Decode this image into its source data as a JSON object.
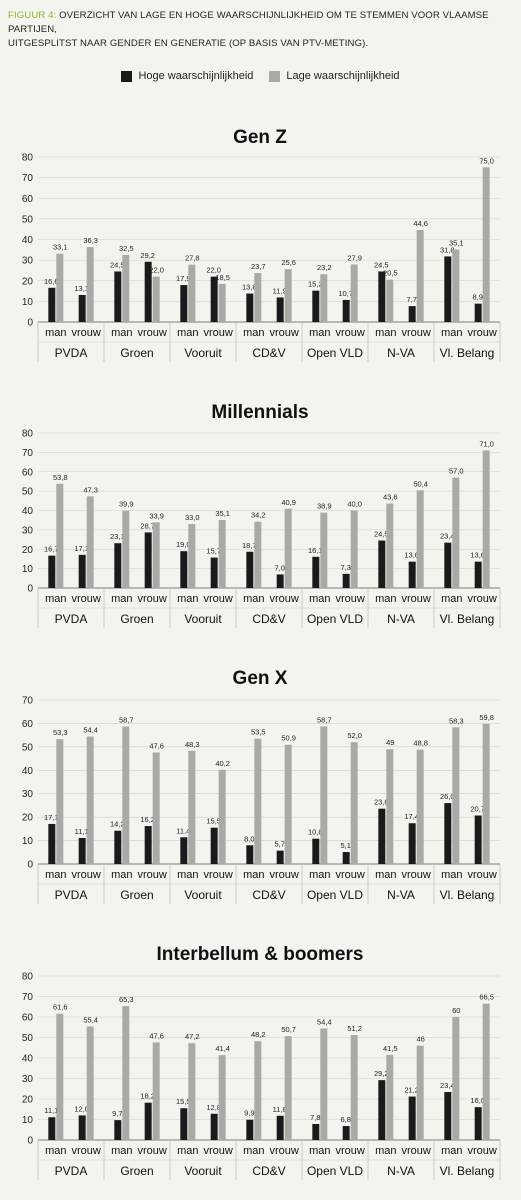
{
  "caption": {
    "prefix": "FIGUUR 4:",
    "line1": " OVERZICHT VAN LAGE EN HOGE WAARSCHIJNLIJKHEID OM TE STEMMEN VOOR VLAAMSE PARTIJEN,",
    "line2": "UITGESPLITST NAAR GENDER EN GENERATIE (OP BASIS VAN PTV-METING)."
  },
  "legend": [
    {
      "name": "Hoge waarschijnlijkheid",
      "color": "#1a1a1a"
    },
    {
      "name": "Lage waarschijnlijkheid",
      "color": "#a9a9a6"
    }
  ],
  "colors": {
    "high": "#1a1a1a",
    "low": "#a9a9a6",
    "caption_prefix": "#8ab531"
  },
  "chart_data": [
    {
      "type": "bar",
      "title": "Gen Z",
      "parties": [
        "PVDA",
        "Groen",
        "Vooruit",
        "CD&V",
        "Open VLD",
        "N-VA",
        "Vl. Belang"
      ],
      "subcategories": [
        "man",
        "vrouw"
      ],
      "ylim": [
        0,
        80
      ],
      "yticks": [
        "0",
        "10",
        "20",
        "30",
        "40",
        "50",
        "60",
        "70",
        "80"
      ],
      "series": [
        {
          "name": "Hoge waarschijnlijkheid",
          "values": [
            16.6,
            13.1,
            24.5,
            29.2,
            17.9,
            22.0,
            13.8,
            11.9,
            15.2,
            10.7,
            24.5,
            7.7,
            31.8,
            8.9
          ],
          "labels": [
            "16,6",
            "13,1",
            "24,5",
            "29,2",
            "17,9",
            "22,0",
            "13,8",
            "11,9",
            "15,2",
            "10,7",
            "24,5",
            "7,7",
            "31,8",
            "8,9"
          ]
        },
        {
          "name": "Lage waarschijnlijkheid",
          "values": [
            33.1,
            36.3,
            32.5,
            22.0,
            27.8,
            18.5,
            23.7,
            25.6,
            23.2,
            27.9,
            20.5,
            44.6,
            35.1,
            75.0
          ],
          "labels": [
            "33,1",
            "36,3",
            "32,5",
            "22,0",
            "27,8",
            "18,5",
            "23,7",
            "25,6",
            "23,2",
            "27,9",
            "20,5",
            "44,6",
            "35,1",
            "75,0"
          ]
        }
      ]
    },
    {
      "type": "bar",
      "title": "Millennials",
      "parties": [
        "PVDA",
        "Groen",
        "Vooruit",
        "CD&V",
        "Open VLD",
        "N-VA",
        "Vl. Belang"
      ],
      "subcategories": [
        "man",
        "vrouw"
      ],
      "ylim": [
        0,
        80
      ],
      "yticks": [
        "0",
        "10",
        "20",
        "30",
        "40",
        "50",
        "60",
        "70",
        "80"
      ],
      "series": [
        {
          "name": "Hoge waarschijnlijkheid",
          "values": [
            16.7,
            17.1,
            23.1,
            28.7,
            19.0,
            15.7,
            18.7,
            7.0,
            16.1,
            7.3,
            24.5,
            13.6,
            23.4,
            13.6
          ],
          "labels": [
            "16,7",
            "17,1",
            "23,1",
            "28,7",
            "19,0",
            "15,7",
            "18,7",
            "7,0",
            "16,1",
            "7,3",
            "24,5",
            "13,6",
            "23,4",
            "13,6"
          ]
        },
        {
          "name": "Lage waarschijnlijkheid",
          "values": [
            53.8,
            47.3,
            39.9,
            33.9,
            33.0,
            35.1,
            34.2,
            40.9,
            38.9,
            40.0,
            43.6,
            50.4,
            57.0,
            71.0
          ],
          "labels": [
            "53,8",
            "47,3",
            "39,9",
            "33,9",
            "33,0",
            "35,1",
            "34,2",
            "40,9",
            "38,9",
            "40,0",
            "43,6",
            "50,4",
            "57,0",
            "71,0"
          ]
        }
      ]
    },
    {
      "type": "bar",
      "title": "Gen X",
      "parties": [
        "PVDA",
        "Groen",
        "Vooruit",
        "CD&V",
        "Open VLD",
        "N-VA",
        "Vl. Belang"
      ],
      "subcategories": [
        "man",
        "vrouw"
      ],
      "ylim": [
        0,
        70
      ],
      "yticks": [
        "0",
        "10",
        "20",
        "30",
        "40",
        "50",
        "60",
        "70"
      ],
      "series": [
        {
          "name": "Hoge waarschijnlijkheid",
          "values": [
            17.1,
            11.1,
            14.2,
            16.2,
            11.4,
            15.5,
            8.0,
            5.7,
            10.8,
            5.1,
            23.6,
            17.4,
            26.0,
            20.7
          ],
          "labels": [
            "17,1",
            "11,1",
            "14,2",
            "16,2",
            "11,4",
            "15,5",
            "8,0",
            "5,7",
            "10,8",
            "5,1",
            "23,6",
            "17,4",
            "26,0",
            "20,7"
          ]
        },
        {
          "name": "Lage waarschijnlijkheid",
          "values": [
            53.3,
            54.4,
            58.7,
            47.6,
            48.3,
            40.2,
            53.5,
            50.9,
            58.7,
            52.0,
            49,
            48.8,
            58.3,
            59.8
          ],
          "labels": [
            "53,3",
            "54,4",
            "58,7",
            "47,6",
            "48,3",
            "40,2",
            "53,5",
            "50,9",
            "58,7",
            "52,0",
            "49",
            "48,8",
            "58,3",
            "59,8"
          ]
        }
      ]
    },
    {
      "type": "bar",
      "title": "Interbellum & boomers",
      "parties": [
        "PVDA",
        "Groen",
        "Vooruit",
        "CD&V",
        "Open VLD",
        "N-VA",
        "Vl. Belang"
      ],
      "subcategories": [
        "man",
        "vrouw"
      ],
      "ylim": [
        0,
        80
      ],
      "yticks": [
        "0",
        "10",
        "20",
        "30",
        "40",
        "50",
        "60",
        "70",
        "80"
      ],
      "series": [
        {
          "name": "Hoge waarschijnlijkheid",
          "values": [
            11.1,
            12.0,
            9.7,
            18.2,
            15.5,
            12.8,
            9.9,
            11.8,
            7.8,
            6.8,
            29.2,
            21.2,
            23.4,
            16.0
          ],
          "labels": [
            "11,1",
            "12,0",
            "9,7",
            "18,2",
            "15,5",
            "12,8",
            "9,9",
            "11,8",
            "7,8",
            "6,8",
            "29,2",
            "21,2",
            "23,4",
            "16,0"
          ]
        },
        {
          "name": "Lage waarschijnlijkheid",
          "values": [
            61.6,
            55.4,
            65.3,
            47.6,
            47.2,
            41.4,
            48.2,
            50.7,
            54.4,
            51.2,
            41.5,
            46,
            60,
            66.5
          ],
          "labels": [
            "61,6",
            "55,4",
            "65,3",
            "47,6",
            "47,2",
            "41,4",
            "48,2",
            "50,7",
            "54,4",
            "51,2",
            "41,5",
            "46",
            "60",
            "66,5"
          ]
        }
      ]
    }
  ]
}
